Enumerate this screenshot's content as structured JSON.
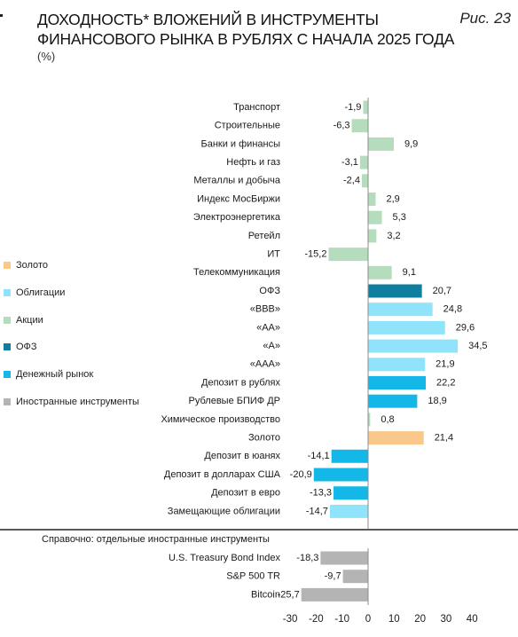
{
  "title_lines": [
    "ДОХОДНОСТЬ* ВЛОЖЕНИЙ В ИНСТРУМЕНТЫ",
    "ФИНАНСОВОГО РЫНКА В РУБЛЯХ С НАЧАЛА 2025 ГОДА"
  ],
  "subtitle": "(%)",
  "figure_label": "Рис. 23",
  "colors": {
    "gold": "#fbc88c",
    "bonds": "#8fe4fb",
    "stocks": "#b5dcbd",
    "ofz": "#0f7fa0",
    "money_market": "#13b8e8",
    "foreign": "#b4b4b4"
  },
  "legend": [
    {
      "label": "Золото",
      "color": "#fbc88c"
    },
    {
      "label": "Облигации",
      "color": "#8fe4fb"
    },
    {
      "label": "Акции",
      "color": "#b5dcbd"
    },
    {
      "label": "ОФЗ",
      "color": "#0f7fa0"
    },
    {
      "label": "Денежный рынок",
      "color": "#13b8e8"
    },
    {
      "label": "Иностранные инструменты",
      "color": "#b4b4b4"
    }
  ],
  "chart_data": {
    "type": "bar",
    "orientation": "horizontal",
    "categories": [
      "Транспорт",
      "Строительные",
      "Банки и финансы",
      "Нефть и газ",
      "Металлы и добыча",
      "Индекс МосБиржи",
      "Электроэнергетика",
      "Ретейл",
      "ИТ",
      "Телекоммуникация",
      "ОФЗ",
      "«BBB»",
      "«AA»",
      "«A»",
      "«AAA»",
      "Депозит в рублях",
      "Рублевые БПИФ ДР",
      "Химическое производство",
      "Золото",
      "Депозит в юанях",
      "Депозит в долларах США",
      "Депозит в евро",
      "Замещающие облигации"
    ],
    "values": [
      -1.9,
      -6.3,
      9.9,
      -3.1,
      -2.4,
      2.9,
      5.3,
      3.2,
      -15.2,
      9.1,
      20.7,
      24.8,
      29.6,
      34.5,
      21.9,
      22.2,
      18.9,
      0.8,
      21.4,
      -14.1,
      -20.9,
      -13.3,
      -14.7
    ],
    "value_labels": [
      "-1,9",
      "-6,3",
      "9,9",
      "-3,1",
      "-2,4",
      "2,9",
      "5,3",
      "3,2",
      "-15,2",
      "9,1",
      "20,7",
      "24,8",
      "29,6",
      "34,5",
      "21,9",
      "22,2",
      "18,9",
      "0,8",
      "21,4",
      "-14,1",
      "-20,9",
      "-13,3",
      "-14,7"
    ],
    "groups": [
      "stocks",
      "stocks",
      "stocks",
      "stocks",
      "stocks",
      "stocks",
      "stocks",
      "stocks",
      "stocks",
      "stocks",
      "ofz",
      "bonds",
      "bonds",
      "bonds",
      "bonds",
      "money_market",
      "money_market",
      "stocks",
      "gold",
      "money_market",
      "money_market",
      "money_market",
      "bonds"
    ],
    "reference": {
      "heading": "Справочно: отдельные иностранные инструменты",
      "categories": [
        "U.S. Treasury Bond Index",
        "S&P 500 TR",
        "Bitcoin"
      ],
      "values": [
        -18.3,
        -9.7,
        -25.7
      ],
      "value_labels": [
        "-18,3",
        "-9,7",
        "-25,7"
      ],
      "group": "foreign"
    },
    "xlim": [
      -30,
      40
    ],
    "xticks": [
      -30,
      -20,
      -10,
      0,
      10,
      20,
      30,
      40
    ],
    "grid": false,
    "legend_position": "left"
  }
}
